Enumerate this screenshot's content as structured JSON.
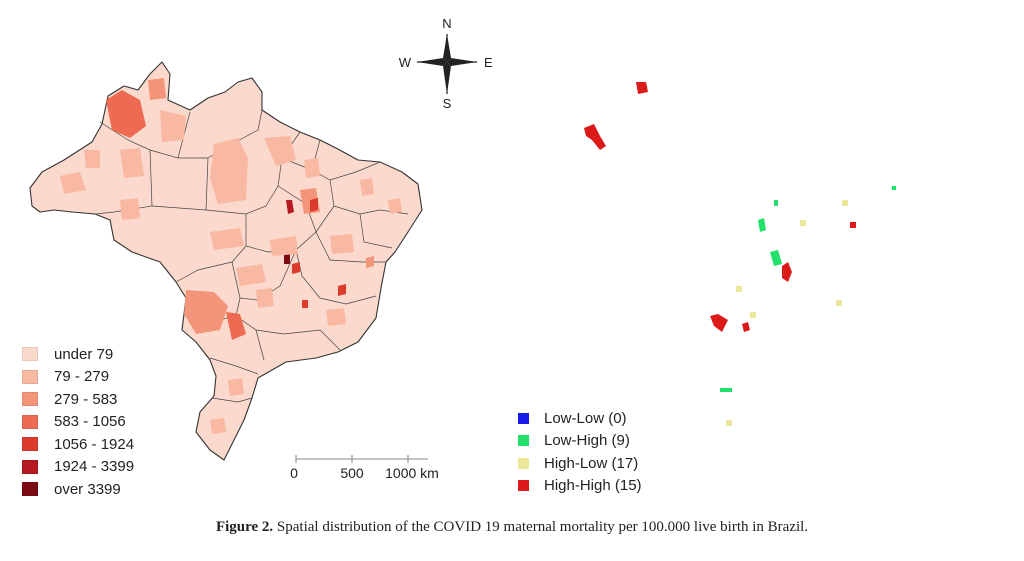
{
  "left_map": {
    "legend": [
      {
        "label": "under 79",
        "color": "#fbd9cc"
      },
      {
        "label": "79 - 279",
        "color": "#f8b8a2"
      },
      {
        "label": "279 - 583",
        "color": "#f3957a"
      },
      {
        "label": "583 - 1056",
        "color": "#ec6b52"
      },
      {
        "label": "1056 - 1924",
        "color": "#dc3b2c"
      },
      {
        "label": "1924 - 3399",
        "color": "#b41a20"
      },
      {
        "label": "over 3399",
        "color": "#7c0a12"
      }
    ]
  },
  "right_map": {
    "legend": [
      {
        "label": "Low-Low (0)",
        "color": "#1a1ae6"
      },
      {
        "label": "Low-High (9)",
        "color": "#22e06a"
      },
      {
        "label": "High-Low (17)",
        "color": "#ece79a"
      },
      {
        "label": "High-High (15)",
        "color": "#dd1a1a"
      }
    ]
  },
  "north_arrow": {
    "n": "N",
    "s": "S",
    "e": "E",
    "w": "W"
  },
  "scale_bar": {
    "labels": [
      "0",
      "500",
      "1000 km"
    ]
  },
  "caption": {
    "label": "Figure 2.",
    "text": "Spatial distribution of the COVID 19 maternal mortality per 100.000 live birth in Brazil."
  },
  "colors": {
    "outline": "#333333",
    "base_fill_left": "#fbd9cc",
    "base_fill_right": "#ffffff"
  }
}
